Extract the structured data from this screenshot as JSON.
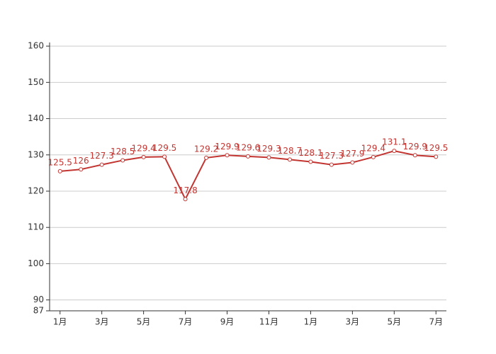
{
  "chart_data": {
    "type": "line",
    "categories": [
      "1月",
      null,
      "3月",
      null,
      "5月",
      null,
      "7月",
      null,
      "9月",
      null,
      "11月",
      null,
      "1月",
      null,
      "3月",
      null,
      "5月",
      null,
      "7月"
    ],
    "series": [
      {
        "color": "#c23531",
        "values": [
          125.5,
          126,
          127.3,
          128.5,
          129.4,
          129.5,
          117.8,
          129.2,
          129.9,
          129.6,
          129.3,
          128.7,
          128.1,
          127.3,
          127.9,
          129.4,
          131.1,
          129.9,
          129.5
        ]
      }
    ],
    "ylim": [
      87,
      161
    ],
    "yticks": [
      87,
      90,
      100,
      110,
      120,
      130,
      140,
      150,
      160
    ],
    "grid": true
  }
}
